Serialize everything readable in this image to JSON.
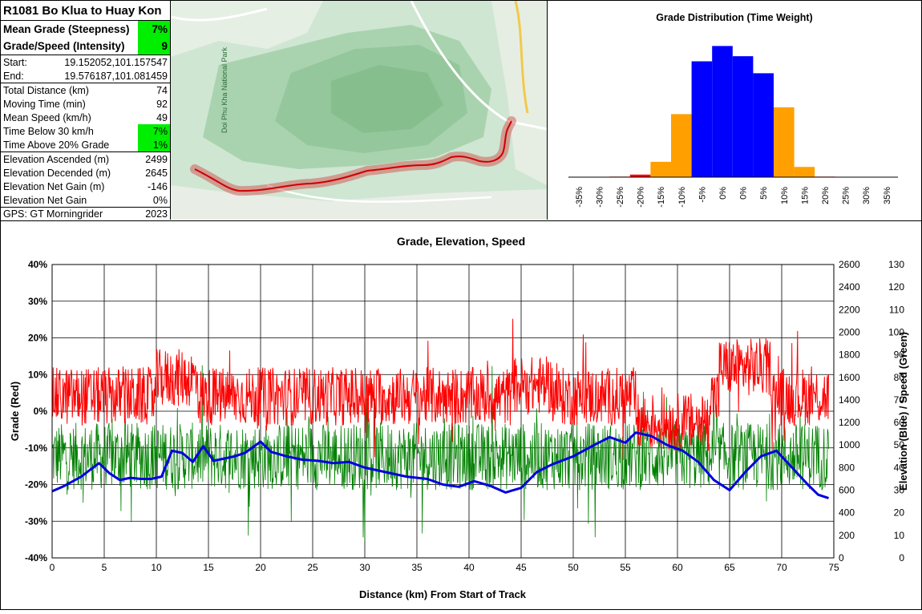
{
  "stats": {
    "title": "R1081 Bo Klua to Huay Kon",
    "mean_grade_label": "Mean Grade (Steepness)",
    "mean_grade_value": "7%",
    "intensity_label": "Grade/Speed (Intensity)",
    "intensity_value": "9",
    "start_label": "Start:",
    "start_value": "19.152052,101.157547",
    "end_label": "End:",
    "end_value": "19.576187,101.081459",
    "total_distance_label": "Total Distance (km)",
    "total_distance_value": "74",
    "moving_time_label": "Moving Time (min)",
    "moving_time_value": "92",
    "mean_speed_label": "Mean Speed (km/h)",
    "mean_speed_value": "49",
    "time_below_label": "Time Below 30 km/h",
    "time_below_value": "7%",
    "time_above_label": "Time Above 20% Grade",
    "time_above_value": "1%",
    "elev_asc_label": "Elevation Ascended (m)",
    "elev_asc_value": "2499",
    "elev_desc_label": "Elevation Decended (m)",
    "elev_desc_value": "2645",
    "net_gain_m_label": "Elevation Net Gain (m)",
    "net_gain_m_value": "-146",
    "net_gain_pct_label": "Elevation Net Gain",
    "net_gain_pct_value": "0%",
    "gps_label": "GPS: GT Morningrider",
    "gps_value": "2023"
  },
  "map": {
    "labels": [
      "Doi Phu Kha National Park"
    ]
  },
  "histogram": {
    "chart_data": {
      "type": "bar",
      "title": "Grade Distribution (Time Weight)",
      "categories": [
        "-35%",
        "-30%",
        "-25%",
        "-20%",
        "-15%",
        "-10%",
        "-5%",
        "0%",
        "0%",
        "5%",
        "10%",
        "15%",
        "20%",
        "25%",
        "30%",
        "35%"
      ],
      "values": [
        0,
        0,
        0.3,
        1.5,
        9,
        37,
        68,
        77,
        71,
        61,
        41,
        6,
        0.3,
        0,
        0,
        0
      ],
      "colors": [
        "#ff0000",
        "#ff0000",
        "#ff0000",
        "#ff0000",
        "#ffa000",
        "#ffa000",
        "#0000ff",
        "#0000ff",
        "#0000ff",
        "#0000ff",
        "#ffa000",
        "#ffa000",
        "#ff0000",
        "#ff0000",
        "#ff0000",
        "#ff0000"
      ],
      "ylim": [
        0,
        80
      ]
    }
  },
  "main_chart": {
    "chart_data": {
      "type": "line",
      "title": "Grade, Elevation, Speed",
      "xlabel": "Distance (km) From Start of Track",
      "ylabel_left": "Grade (Red)",
      "ylabel_right": "Elevation (Blue) / Speed (Green)",
      "xlim": [
        0,
        75
      ],
      "x_ticks": [
        "0",
        "5",
        "10",
        "15",
        "20",
        "25",
        "30",
        "35",
        "40",
        "45",
        "50",
        "55",
        "60",
        "65",
        "70",
        "75"
      ],
      "y_left_lim": [
        -40,
        40
      ],
      "y_left_ticks": [
        "-40%",
        "-30%",
        "-20%",
        "-10%",
        "0%",
        "10%",
        "20%",
        "30%",
        "40%"
      ],
      "y_elev_lim": [
        0,
        2600
      ],
      "y_elev_ticks": [
        "0",
        "200",
        "400",
        "600",
        "800",
        "1000",
        "1200",
        "1400",
        "1600",
        "1800",
        "2000",
        "2200",
        "2400",
        "2600"
      ],
      "y_speed_lim": [
        0,
        130
      ],
      "y_speed_ticks": [
        "0",
        "10",
        "20",
        "30",
        "40",
        "50",
        "60",
        "70",
        "80",
        "90",
        "100",
        "110",
        "120",
        "130"
      ],
      "elevation_series": {
        "name": "Elevation",
        "color": "#0000dd",
        "x": [
          0,
          1,
          2,
          2.8,
          3.5,
          4.5,
          5.5,
          6.5,
          7.5,
          8.5,
          9.5,
          10.5,
          11.5,
          12.5,
          13.5,
          14.5,
          15.5,
          16.5,
          17.5,
          18.5,
          20,
          21,
          22.5,
          24,
          25.5,
          27,
          28.5,
          30,
          32,
          34,
          36,
          37.5,
          39,
          40.5,
          42,
          43.5,
          45,
          46.5,
          48,
          50,
          52,
          53.5,
          55,
          56,
          57.5,
          59,
          60.5,
          62,
          63.5,
          65,
          66.5,
          68,
          69.5,
          71,
          72.5,
          73.5,
          74.5
        ],
        "values": [
          590,
          630,
          680,
          720,
          770,
          840,
          750,
          690,
          710,
          700,
          700,
          720,
          950,
          930,
          850,
          990,
          860,
          880,
          900,
          930,
          1030,
          940,
          900,
          870,
          860,
          840,
          850,
          800,
          760,
          720,
          700,
          650,
          630,
          680,
          640,
          580,
          620,
          760,
          830,
          900,
          1000,
          1070,
          1020,
          1110,
          1080,
          1000,
          950,
          850,
          690,
          600,
          760,
          900,
          950,
          800,
          650,
          560,
          530
        ]
      },
      "grade_series": {
        "name": "Grade",
        "color": "#ff0000",
        "stats": "noisy, mean near 5%"
      },
      "speed_series": {
        "name": "Speed",
        "color": "#008000",
        "stats": "noisy, mean near 45 km/h"
      }
    }
  }
}
